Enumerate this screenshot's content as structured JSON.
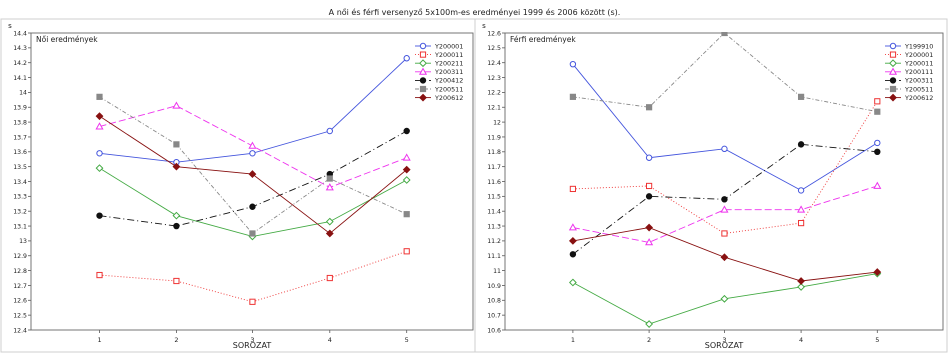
{
  "page_title": "A női és férfi versenyző 5x100m-es eredményei 1999 és 2006 között (s).",
  "chart_data": [
    {
      "type": "line",
      "panel_title": "Női eredmények",
      "xlabel": "SOROZAT",
      "ylabel": "s",
      "x": [
        1,
        2,
        3,
        4,
        5
      ],
      "ylim": [
        12.4,
        14.4
      ],
      "ytick_step": 0.1,
      "grid": true,
      "legend_position": "top-right",
      "series": [
        {
          "name": "Y200001",
          "values": [
            13.59,
            13.53,
            13.59,
            13.74,
            14.23
          ],
          "color": "#4455dd",
          "dash": "",
          "marker": "circle-open"
        },
        {
          "name": "Y200011",
          "values": [
            12.77,
            12.73,
            12.59,
            12.75,
            12.93
          ],
          "color": "#ee3333",
          "dash": "1,2",
          "marker": "square-open"
        },
        {
          "name": "Y200211",
          "values": [
            13.49,
            13.17,
            13.03,
            13.13,
            13.41
          ],
          "color": "#44aa44",
          "dash": "",
          "marker": "diamond-open"
        },
        {
          "name": "Y200311",
          "values": [
            13.77,
            13.91,
            13.64,
            13.36,
            13.56
          ],
          "color": "#ee33ee",
          "dash": "7,3",
          "marker": "triangle-open"
        },
        {
          "name": "Y200412",
          "values": [
            13.17,
            13.1,
            13.23,
            13.45,
            13.74
          ],
          "color": "#111111",
          "dash": "7,3,1,3",
          "marker": "circle"
        },
        {
          "name": "Y200511",
          "values": [
            13.97,
            13.65,
            13.05,
            13.42,
            13.18
          ],
          "color": "#888888",
          "dash": "4,2,1,2",
          "marker": "square"
        },
        {
          "name": "Y200612",
          "values": [
            13.84,
            13.5,
            13.45,
            13.05,
            13.48
          ],
          "color": "#881111",
          "dash": "",
          "marker": "diamond"
        }
      ]
    },
    {
      "type": "line",
      "panel_title": "Férfi eredmények",
      "xlabel": "SOROZAT",
      "ylabel": "s",
      "x": [
        1,
        2,
        3,
        4,
        5
      ],
      "ylim": [
        10.6,
        12.6
      ],
      "ytick_step": 0.1,
      "grid": true,
      "legend_position": "top-right",
      "series": [
        {
          "name": "Y199910",
          "values": [
            12.39,
            11.76,
            11.82,
            11.54,
            11.86
          ],
          "color": "#4455dd",
          "dash": "",
          "marker": "circle-open"
        },
        {
          "name": "Y200001",
          "values": [
            11.55,
            11.57,
            11.25,
            11.32,
            12.14
          ],
          "color": "#ee3333",
          "dash": "1,2",
          "marker": "square-open"
        },
        {
          "name": "Y200011",
          "values": [
            10.92,
            10.64,
            10.81,
            10.89,
            10.98
          ],
          "color": "#44aa44",
          "dash": "",
          "marker": "diamond-open"
        },
        {
          "name": "Y200111",
          "values": [
            11.29,
            11.19,
            11.41,
            11.41,
            11.57
          ],
          "color": "#ee33ee",
          "dash": "7,3",
          "marker": "triangle-open"
        },
        {
          "name": "Y200311",
          "values": [
            11.11,
            11.5,
            11.48,
            11.85,
            11.8
          ],
          "color": "#111111",
          "dash": "7,3,1,3",
          "marker": "circle"
        },
        {
          "name": "Y200511",
          "values": [
            12.17,
            12.1,
            12.6,
            12.17,
            12.07
          ],
          "color": "#888888",
          "dash": "4,2,1,2",
          "marker": "square"
        },
        {
          "name": "Y200612",
          "values": [
            11.2,
            11.29,
            11.09,
            10.93,
            10.99
          ],
          "color": "#881111",
          "dash": "",
          "marker": "diamond"
        }
      ]
    }
  ]
}
